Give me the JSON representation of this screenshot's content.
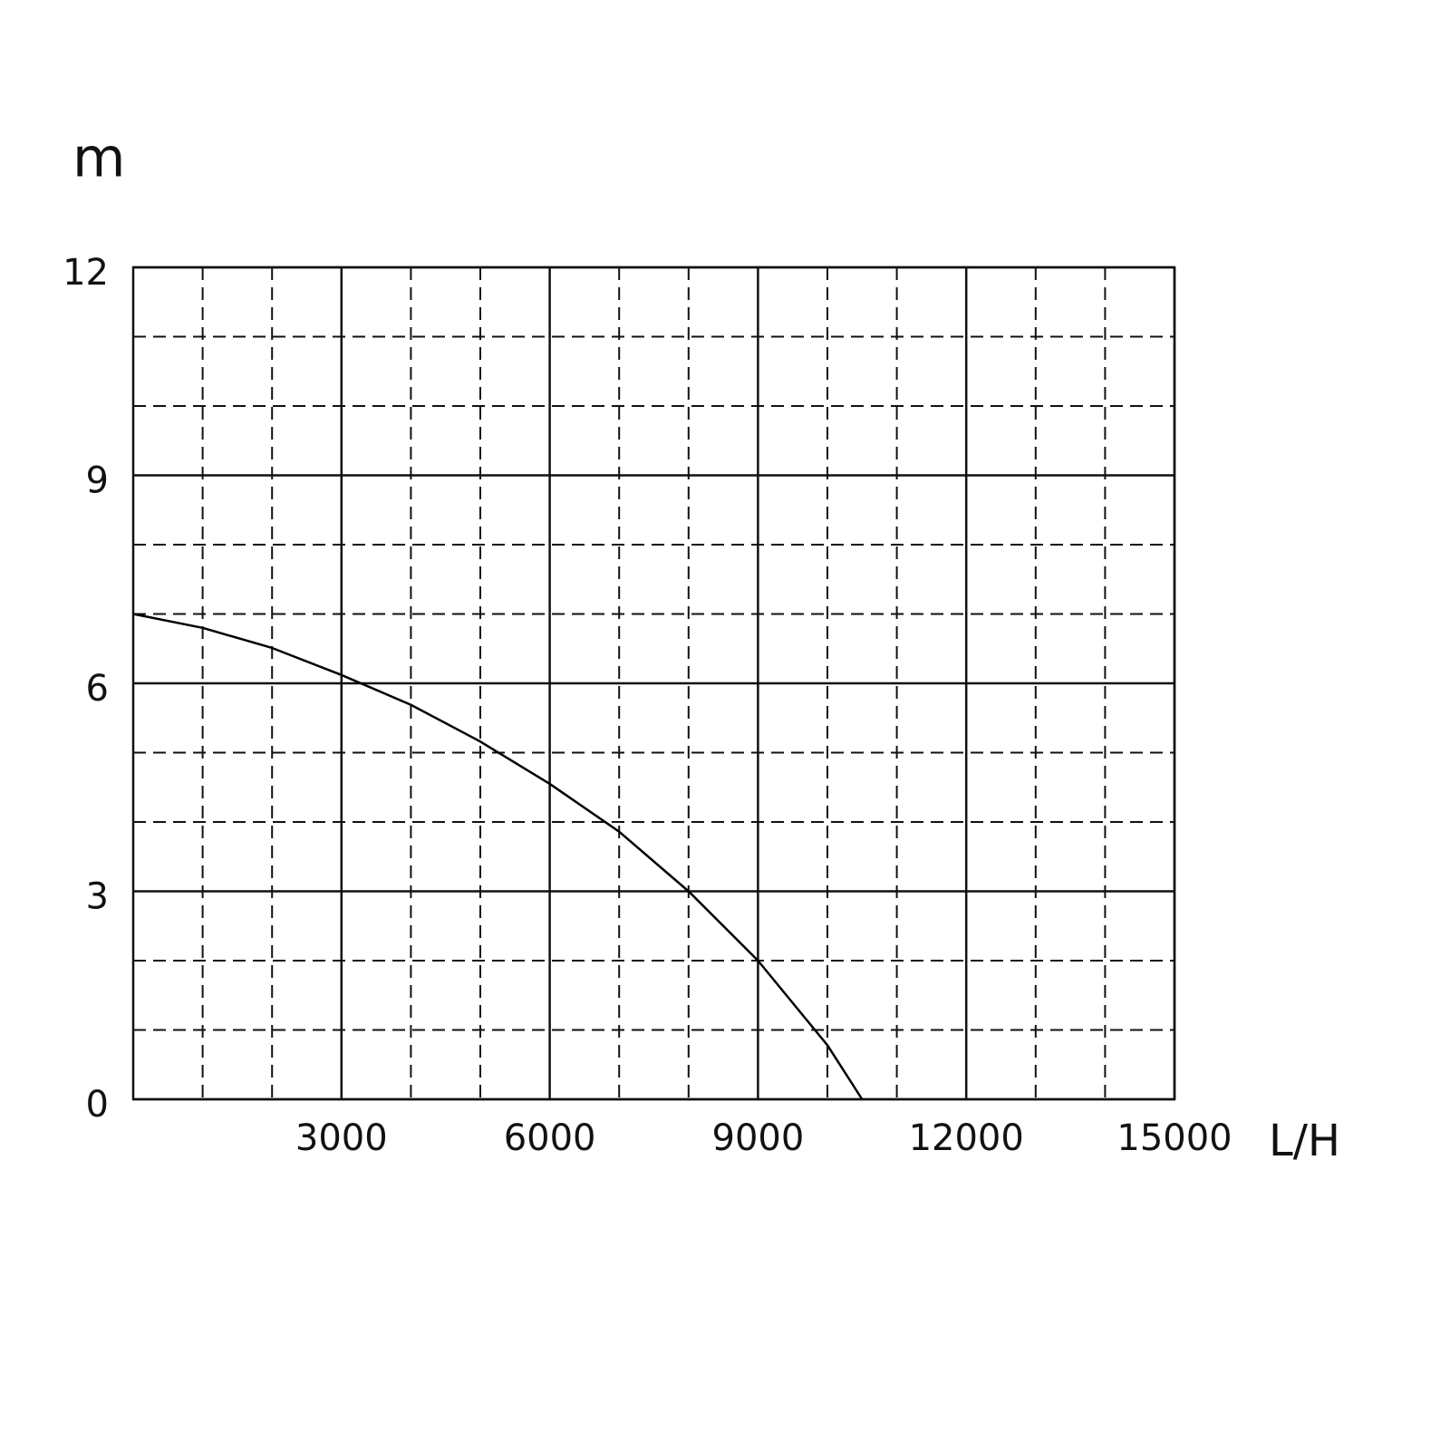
{
  "chart_data": {
    "type": "line",
    "ylabel": "m",
    "xlabel": "L/H",
    "x": [
      0,
      1000,
      2000,
      3000,
      4000,
      5000,
      6000,
      7000,
      8000,
      9000,
      10000,
      10500
    ],
    "series": [
      {
        "color": "#000000",
        "values": [
          7.0,
          6.8,
          6.51,
          6.12,
          5.69,
          5.16,
          4.55,
          3.86,
          3.0,
          2.0,
          0.78,
          0
        ]
      }
    ],
    "xlim": [
      0,
      15000
    ],
    "ylim": [
      0,
      12
    ],
    "xticks": [
      3000,
      6000,
      9000,
      12000,
      15000
    ],
    "yticks": [
      0,
      3,
      6,
      9,
      12
    ],
    "grid": true
  }
}
